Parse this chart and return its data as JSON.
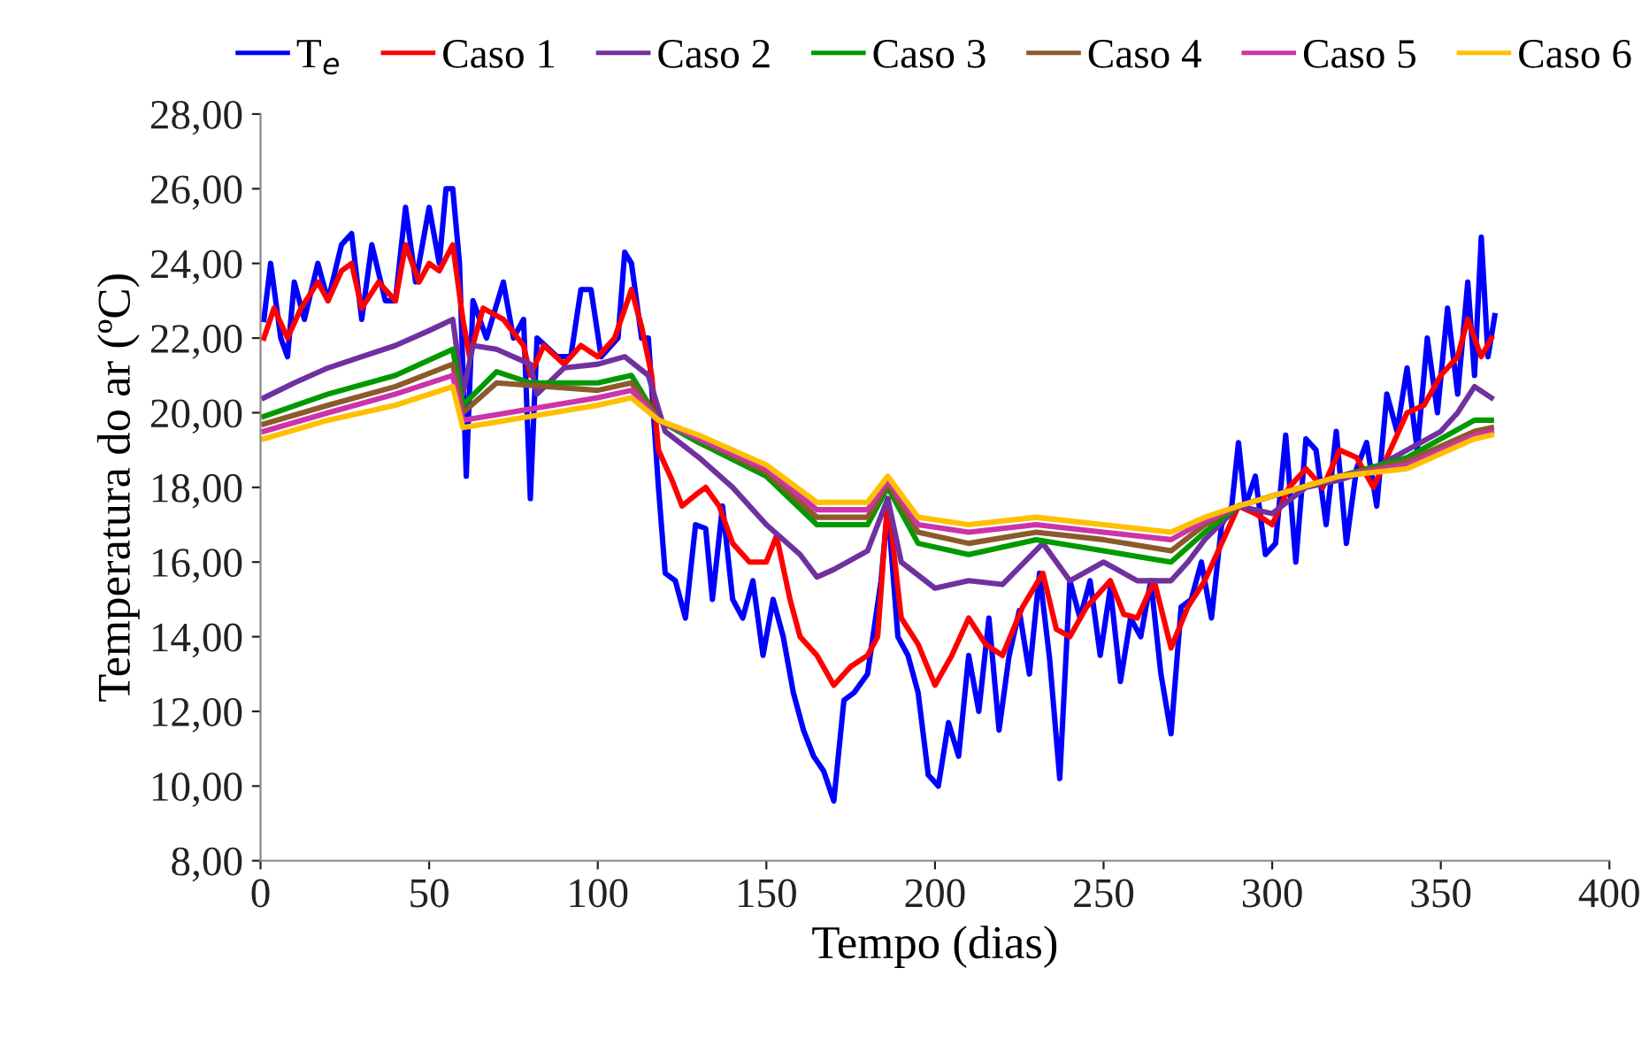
{
  "chart_data": {
    "type": "line",
    "xlabel": "Tempo (dias)",
    "ylabel": "Temperatura do ar (ºC)",
    "xlim": [
      0,
      400
    ],
    "xticks": [
      0,
      50,
      100,
      150,
      200,
      250,
      300,
      350,
      400
    ],
    "ylim": [
      8,
      28
    ],
    "yticks": [
      {
        "value": 8,
        "label": "8,00"
      },
      {
        "value": 10,
        "label": "10,00"
      },
      {
        "value": 12,
        "label": "12,00"
      },
      {
        "value": 14,
        "label": "14,00"
      },
      {
        "value": 16,
        "label": "16,00"
      },
      {
        "value": 18,
        "label": "18,00"
      },
      {
        "value": 20,
        "label": "20,00"
      },
      {
        "value": 22,
        "label": "22,00"
      },
      {
        "value": 24,
        "label": "24,00"
      },
      {
        "value": 26,
        "label": "26,00"
      },
      {
        "value": 28,
        "label": "28,00"
      }
    ],
    "grid": false,
    "legend": "top",
    "marker": "none",
    "line_style": "solid",
    "series": [
      {
        "name": "T$_{e}$",
        "color": "#0000ff",
        "x": [
          1,
          3,
          6,
          8,
          10,
          13,
          17,
          20,
          24,
          27,
          30,
          33,
          37,
          40,
          43,
          46,
          50,
          53,
          55,
          57,
          59,
          61,
          63,
          67,
          72,
          75,
          78,
          80,
          82,
          88,
          92,
          95,
          98,
          101,
          106,
          108,
          110,
          113,
          115,
          118,
          120,
          123,
          126,
          129,
          132,
          134,
          137,
          140,
          143,
          146,
          149,
          152,
          155,
          158,
          161,
          164,
          167,
          170,
          173,
          176,
          180,
          184,
          186,
          189,
          192,
          195,
          198,
          201,
          204,
          207,
          210,
          213,
          216,
          219,
          222,
          225,
          228,
          231,
          234,
          237,
          240,
          243,
          246,
          249,
          252,
          255,
          258,
          261,
          264,
          267,
          270,
          273,
          276,
          279,
          282,
          285,
          288,
          290,
          292,
          295,
          298,
          301,
          304,
          307,
          310,
          313,
          316,
          319,
          322,
          325,
          328,
          331,
          334,
          337,
          340,
          343,
          346,
          349,
          352,
          355,
          358,
          360,
          362,
          364,
          366
        ],
        "values": [
          22.5,
          24.0,
          22.0,
          21.5,
          23.5,
          22.5,
          24.0,
          23.0,
          24.5,
          24.8,
          22.5,
          24.5,
          23.0,
          23.0,
          25.5,
          23.5,
          25.5,
          24.0,
          26.0,
          26.0,
          24.0,
          18.3,
          23.0,
          22.0,
          23.5,
          22.0,
          22.5,
          17.7,
          22.0,
          21.5,
          21.5,
          23.3,
          23.3,
          21.5,
          22.0,
          24.3,
          24.0,
          22.0,
          22.0,
          18.0,
          15.7,
          15.5,
          14.5,
          17.0,
          16.9,
          15.0,
          17.5,
          15.0,
          14.5,
          15.5,
          13.5,
          15.0,
          14.0,
          12.5,
          11.5,
          10.8,
          10.4,
          9.6,
          12.3,
          12.5,
          13.0,
          15.5,
          17.5,
          14.0,
          13.5,
          12.5,
          10.3,
          10.0,
          11.7,
          10.8,
          13.5,
          12.0,
          14.5,
          11.5,
          13.5,
          14.7,
          13.0,
          15.7,
          13.4,
          10.2,
          15.5,
          14.5,
          15.5,
          13.5,
          15.3,
          12.8,
          14.5,
          14.0,
          15.5,
          13.0,
          11.4,
          14.8,
          15.0,
          16.0,
          14.5,
          17.0,
          17.5,
          19.2,
          17.5,
          18.3,
          16.2,
          16.5,
          19.4,
          16.0,
          19.3,
          19.0,
          17.0,
          19.5,
          16.5,
          18.5,
          19.2,
          17.5,
          20.5,
          19.5,
          21.2,
          19.0,
          22.0,
          20.0,
          22.8,
          20.5,
          23.5,
          21.0,
          24.7,
          21.5,
          22.6
        ]
      },
      {
        "name": "Caso 1",
        "color": "#ff0000",
        "x": [
          1,
          4,
          8,
          12,
          17,
          20,
          24,
          27,
          30,
          35,
          40,
          43,
          47,
          50,
          53,
          57,
          60,
          62,
          66,
          72,
          78,
          80,
          84,
          90,
          95,
          100,
          105,
          110,
          113,
          116,
          118,
          122,
          125,
          129,
          132,
          136,
          140,
          145,
          150,
          153,
          157,
          160,
          165,
          170,
          175,
          180,
          183,
          186,
          190,
          195,
          200,
          205,
          210,
          215,
          220,
          226,
          232,
          236,
          240,
          245,
          252,
          256,
          260,
          265,
          270,
          275,
          280,
          285,
          290,
          295,
          300,
          305,
          310,
          315,
          320,
          325,
          330,
          335,
          340,
          345,
          350,
          355,
          358,
          362,
          365
        ],
        "values": [
          22.0,
          22.8,
          22.0,
          22.8,
          23.5,
          23.0,
          23.8,
          24.0,
          22.8,
          23.5,
          23.0,
          24.5,
          23.5,
          24.0,
          23.8,
          24.5,
          22.5,
          21.5,
          22.8,
          22.5,
          21.8,
          21.0,
          21.8,
          21.3,
          21.8,
          21.5,
          22.0,
          23.3,
          22.3,
          21.0,
          19.0,
          18.2,
          17.5,
          17.8,
          18.0,
          17.5,
          16.5,
          16.0,
          16.0,
          16.7,
          15.0,
          14.0,
          13.5,
          12.7,
          13.2,
          13.5,
          14.0,
          17.7,
          14.5,
          13.8,
          12.7,
          13.5,
          14.5,
          13.8,
          13.5,
          14.8,
          15.7,
          14.2,
          14.0,
          14.8,
          15.5,
          14.6,
          14.5,
          15.5,
          13.7,
          14.8,
          15.5,
          16.5,
          17.5,
          17.3,
          17.0,
          18.0,
          18.5,
          18.0,
          19.0,
          18.8,
          18.0,
          19.0,
          20.0,
          20.2,
          21.0,
          21.5,
          22.5,
          21.5,
          22.0
        ]
      },
      {
        "name": "Caso 2",
        "color": "#7030a0",
        "x": [
          1,
          10,
          20,
          30,
          40,
          50,
          57,
          60,
          63,
          70,
          80,
          82,
          90,
          100,
          108,
          115,
          120,
          130,
          140,
          150,
          160,
          165,
          170,
          180,
          186,
          190,
          200,
          210,
          220,
          232,
          240,
          250,
          260,
          270,
          275,
          280,
          290,
          300,
          310,
          320,
          330,
          340,
          350,
          355,
          360,
          365
        ],
        "values": [
          20.4,
          20.8,
          21.2,
          21.5,
          21.8,
          22.2,
          22.5,
          20.5,
          21.8,
          21.7,
          21.3,
          20.5,
          21.2,
          21.3,
          21.5,
          21.0,
          19.5,
          18.8,
          18.0,
          17.0,
          16.2,
          15.6,
          15.8,
          16.3,
          17.7,
          16.0,
          15.3,
          15.5,
          15.4,
          16.5,
          15.5,
          16.0,
          15.5,
          15.5,
          16.0,
          16.6,
          17.5,
          17.3,
          18.0,
          18.2,
          18.5,
          19.0,
          19.5,
          20.0,
          20.7,
          20.4
        ]
      },
      {
        "name": "Caso 3",
        "color": "#009900",
        "x": [
          1,
          20,
          40,
          57,
          60,
          70,
          80,
          100,
          110,
          118,
          130,
          150,
          165,
          180,
          186,
          195,
          210,
          230,
          250,
          270,
          280,
          290,
          320,
          340,
          360,
          365
        ],
        "values": [
          19.9,
          20.5,
          21.0,
          21.7,
          20.2,
          21.1,
          20.8,
          20.8,
          21.0,
          19.8,
          19.2,
          18.3,
          17.0,
          17.0,
          18.0,
          16.5,
          16.2,
          16.6,
          16.3,
          16.0,
          16.8,
          17.5,
          18.3,
          18.8,
          19.8,
          19.8
        ]
      },
      {
        "name": "Caso 4",
        "color": "#8b5a2b",
        "x": [
          1,
          20,
          40,
          57,
          60,
          70,
          100,
          110,
          118,
          130,
          150,
          165,
          180,
          186,
          195,
          210,
          230,
          250,
          270,
          280,
          290,
          320,
          340,
          360,
          365
        ],
        "values": [
          19.7,
          20.2,
          20.7,
          21.3,
          20.0,
          20.8,
          20.6,
          20.8,
          19.8,
          19.3,
          18.4,
          17.2,
          17.2,
          18.1,
          16.8,
          16.5,
          16.8,
          16.6,
          16.3,
          17.0,
          17.5,
          18.3,
          18.7,
          19.5,
          19.6
        ]
      },
      {
        "name": "Caso 5",
        "color": "#cc33aa",
        "x": [
          1,
          20,
          40,
          57,
          60,
          100,
          110,
          118,
          130,
          150,
          165,
          180,
          186,
          195,
          210,
          230,
          250,
          270,
          280,
          290,
          320,
          340,
          360,
          365
        ],
        "values": [
          19.5,
          20.0,
          20.5,
          21.0,
          19.8,
          20.4,
          20.6,
          19.8,
          19.3,
          18.5,
          17.4,
          17.4,
          18.2,
          17.0,
          16.8,
          17.0,
          16.8,
          16.6,
          17.1,
          17.5,
          18.3,
          18.6,
          19.4,
          19.5
        ]
      },
      {
        "name": "Caso 6",
        "color": "#ffc000",
        "x": [
          1,
          20,
          40,
          57,
          60,
          100,
          110,
          118,
          130,
          150,
          165,
          180,
          186,
          195,
          210,
          230,
          250,
          270,
          280,
          290,
          320,
          340,
          360,
          365
        ],
        "values": [
          19.3,
          19.8,
          20.2,
          20.7,
          19.6,
          20.2,
          20.4,
          19.8,
          19.4,
          18.6,
          17.6,
          17.6,
          18.3,
          17.2,
          17.0,
          17.2,
          17.0,
          16.8,
          17.2,
          17.5,
          18.3,
          18.5,
          19.3,
          19.4
        ]
      }
    ]
  }
}
